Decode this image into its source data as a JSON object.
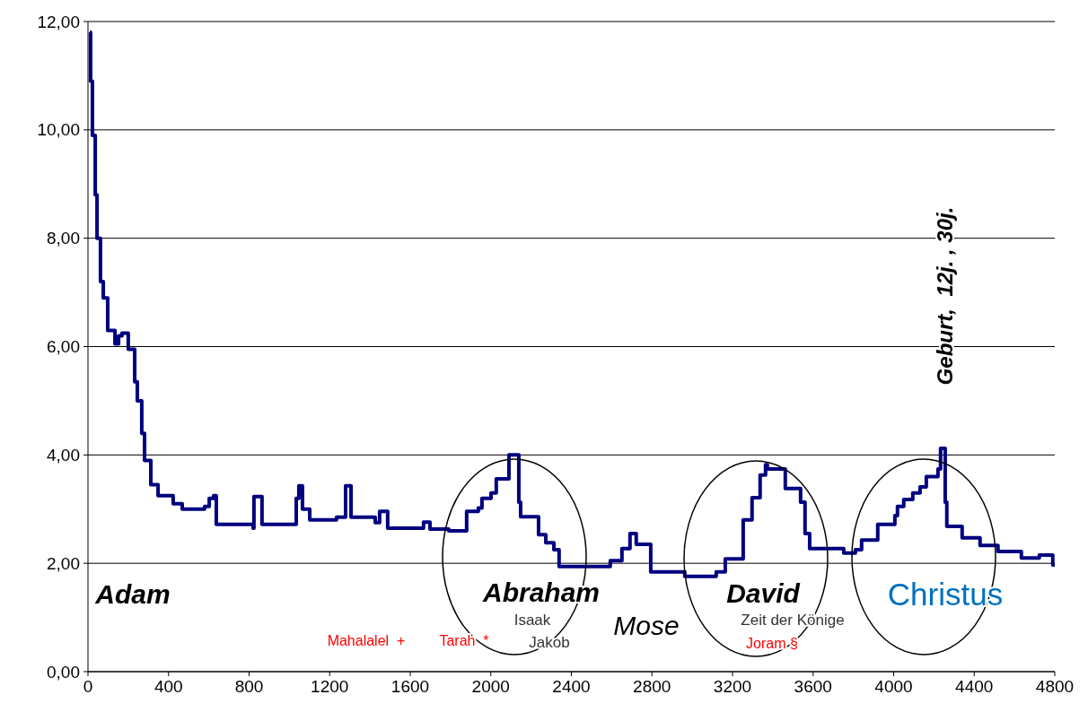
{
  "chart_data": {
    "type": "step",
    "x": [
      9,
      13,
      22,
      36,
      45,
      62,
      76,
      98,
      134,
      152,
      169,
      200,
      232,
      245,
      267,
      281,
      312,
      348,
      423,
      468,
      579,
      602,
      624,
      637,
      820,
      824,
      864,
      1034,
      1047,
      1065,
      1101,
      1234,
      1279,
      1306,
      1426,
      1448,
      1488,
      1666,
      1698,
      1791,
      1880,
      1938,
      1956,
      2001,
      2027,
      2090,
      2139,
      2148,
      2237,
      2273,
      2313,
      2339,
      2593,
      2651,
      2691,
      2722,
      2794,
      2963,
      3119,
      3164,
      3253,
      3297,
      3337,
      3364,
      3373,
      3462,
      3538,
      3560,
      3583,
      3752,
      3810,
      3841,
      3921,
      4006,
      4019,
      4050,
      4095,
      4131,
      4162,
      4220,
      4233,
      4256,
      4264,
      4340,
      4429,
      4518,
      4634,
      4723,
      4790,
      4800
    ],
    "series": [
      {
        "color": "#000080",
        "values": [
          11.8,
          10.9,
          9.9,
          8.8,
          8.0,
          7.2,
          6.9,
          6.3,
          6.05,
          6.2,
          6.25,
          5.95,
          5.35,
          5.0,
          4.4,
          3.9,
          3.45,
          3.25,
          3.1,
          3.0,
          3.05,
          3.2,
          3.25,
          2.72,
          2.65,
          3.23,
          2.72,
          3.2,
          3.43,
          3.0,
          2.8,
          2.85,
          3.43,
          2.85,
          2.75,
          2.96,
          2.65,
          2.76,
          2.63,
          2.6,
          2.96,
          3.02,
          3.2,
          3.3,
          3.56,
          4.0,
          3.13,
          2.86,
          2.53,
          2.38,
          2.25,
          1.94,
          2.05,
          2.27,
          2.55,
          2.35,
          1.84,
          1.76,
          1.84,
          2.08,
          2.8,
          3.21,
          3.63,
          3.82,
          3.74,
          3.38,
          3.13,
          2.55,
          2.27,
          2.19,
          2.25,
          2.43,
          2.72,
          2.88,
          3.05,
          3.18,
          3.3,
          3.41,
          3.6,
          3.74,
          4.12,
          3.13,
          2.68,
          2.47,
          2.33,
          2.22,
          2.1,
          2.15,
          1.97,
          1.97
        ]
      }
    ],
    "xlim": [
      0,
      4800
    ],
    "xticks": [
      0,
      400,
      800,
      1200,
      1600,
      2000,
      2400,
      2800,
      3200,
      3600,
      4000,
      4400,
      4800
    ],
    "ylim": [
      0,
      12
    ],
    "yticks": [
      {
        "value": 0,
        "label": "0,00"
      },
      {
        "value": 2,
        "label": "2,00"
      },
      {
        "value": 4,
        "label": "4,00"
      },
      {
        "value": 6,
        "label": "6,00"
      },
      {
        "value": 8,
        "label": "8,00"
      },
      {
        "value": 10,
        "label": "10,00"
      },
      {
        "value": 12,
        "label": "12,00"
      }
    ],
    "grid": "y",
    "marker": "none",
    "line_style": "solid",
    "annotations": [
      "Adam",
      "Abraham",
      "Isaak",
      "Jakob",
      "Mose",
      "David",
      "Zeit der Könige",
      "Joram §",
      "Christus",
      "Mahalalel  +",
      "Tarah  *",
      "Geburt,  12j. , 30j."
    ]
  }
}
